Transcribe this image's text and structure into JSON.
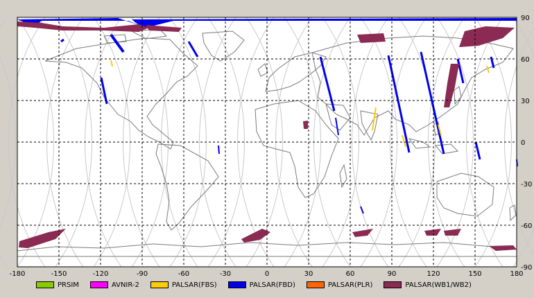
{
  "map": {
    "projection": "equirectangular",
    "lon_range": [
      -180,
      180
    ],
    "lat_range": [
      -90,
      90
    ],
    "grid": "dashed",
    "x_ticks": [
      "-180",
      "-150",
      "-120",
      "-90",
      "-60",
      "-30",
      "0",
      "30",
      "60",
      "90",
      "120",
      "150",
      "180"
    ],
    "y_ticks": [
      "90",
      "60",
      "30",
      "0",
      "-30",
      "-60",
      "-90"
    ],
    "background_color": "#ffffff",
    "coast_color": "#7a7a7a",
    "orbit_color": "#c8c8c8"
  },
  "legend": [
    {
      "label": "PRSIM",
      "color": "#88cc00"
    },
    {
      "label": "AVNIR-2",
      "color": "#ff00ff"
    },
    {
      "label": "PALSAR(FBS)",
      "color": "#ffcc00"
    },
    {
      "label": "PALSAR(FBD)",
      "color": "#0000ee"
    },
    {
      "label": "PALSAR(PLR)",
      "color": "#ff6600"
    },
    {
      "label": "PALSAR(WB1/WB2)",
      "color": "#8b2a52"
    }
  ]
}
